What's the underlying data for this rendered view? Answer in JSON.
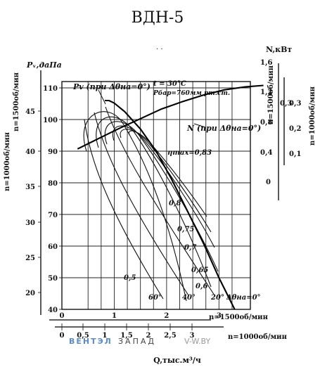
{
  "chart_data": {
    "type": "line",
    "title": "ВДН-5",
    "left_axes": {
      "pressure": {
        "label": "Pᵥ,даПа",
        "ticks": [
          40,
          50,
          60,
          70,
          80,
          90,
          100,
          110
        ],
        "range": [
          40,
          112
        ]
      },
      "n1000": {
        "label": "n=1000об/мин",
        "ticks": [
          20,
          25,
          30,
          35,
          40,
          45
        ]
      },
      "n1500": {
        "label": "n=1500об/мин",
        "ticks": [
          45
        ]
      }
    },
    "right_axes": {
      "power_label": "N,кВт",
      "n1500": {
        "label": "n=1500об/мин",
        "ticks": [
          "0",
          "0,4",
          "0,8",
          "1,2",
          "1,6",
          "0,3"
        ]
      },
      "n1000": {
        "label": "n=1000об/мин",
        "ticks": [
          "0,1",
          "0,2",
          "0,3"
        ]
      }
    },
    "bottom_axes": {
      "q_main": {
        "ticks": [
          "0",
          "1",
          "2",
          "3"
        ],
        "range": [
          0,
          3.6
        ]
      },
      "q_1500_label": "n=1500об/мин",
      "q_1000": {
        "ticks": [
          "0",
          "0,5",
          "1",
          "1,5",
          "2",
          "2,5",
          "3"
        ]
      },
      "q_1000_label": "n=1000об/мин",
      "q_unit": "Q,тыс.м³/ч"
    },
    "conditions": {
      "t": "t = 30°C",
      "p": "Pбар=760мм рт.ст."
    },
    "series": [
      {
        "name": "Pv (при Δθна=0°)",
        "x": [
          0.82,
          0.9,
          1.0,
          1.2,
          1.5,
          1.8,
          2.1,
          2.4,
          2.7,
          3.0,
          3.3
        ],
        "y": [
          106,
          106,
          105.2,
          102.5,
          97,
          90,
          81,
          71,
          61,
          50,
          40
        ]
      },
      {
        "name": "N (при Δθна=0°)",
        "x": [
          0.3,
          0.7,
          1.1,
          1.5,
          1.9,
          2.3,
          2.7,
          3.1,
          3.5,
          3.85
        ],
        "y": [
          0.44,
          0.58,
          0.72,
          0.85,
          0.98,
          1.08,
          1.17,
          1.24,
          1.28,
          1.3
        ]
      }
    ],
    "angle_labels": [
      "60°",
      "40°",
      "20°",
      "Δθна=0°"
    ],
    "efficiency_labels": [
      "ηmax=0,83",
      "0,8",
      "0,75",
      "0,7",
      "0,65",
      "0,6",
      "0,5"
    ]
  },
  "watermark": {
    "brand_colored": "ВЕНТЭЛ",
    "brand_dark": "ЗАПАД",
    "site": "V-W.BY"
  }
}
